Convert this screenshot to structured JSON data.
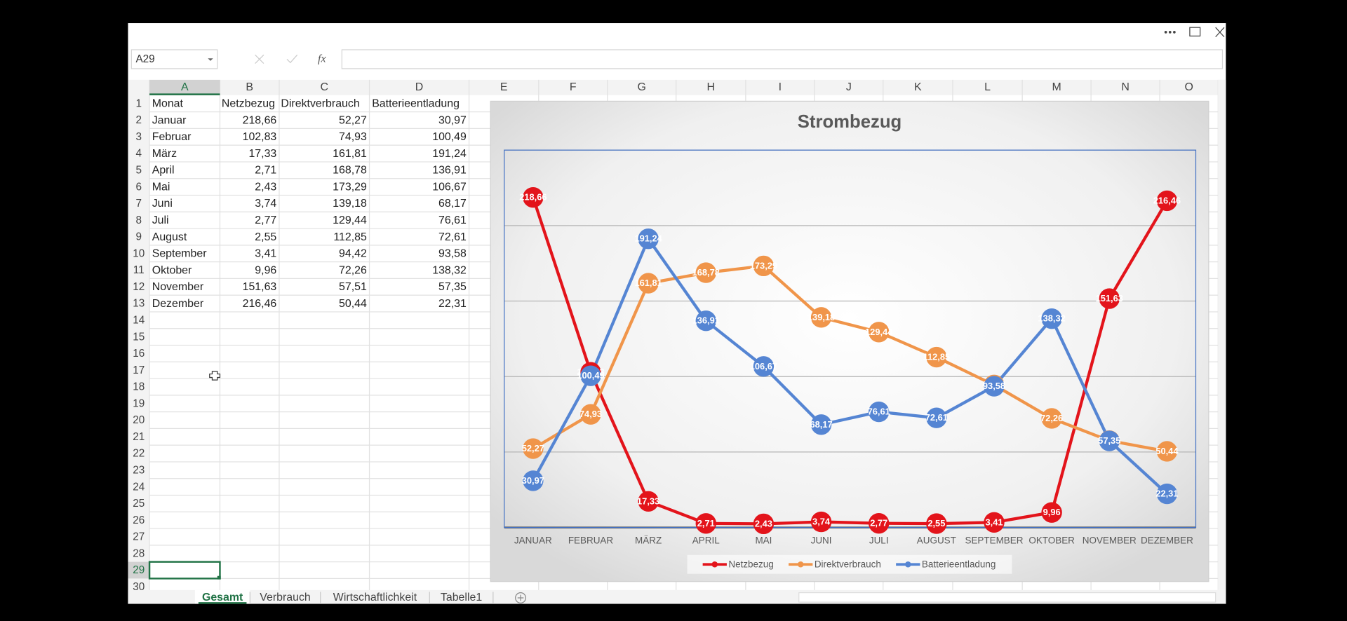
{
  "formula_bar": {
    "name_box": "A29",
    "fx": "fx"
  },
  "sheet": {
    "columns": [
      "A",
      "B",
      "C",
      "D",
      "E",
      "F",
      "G",
      "H",
      "I",
      "J",
      "K",
      "L",
      "M",
      "N",
      "O"
    ],
    "row_numbers": [
      1,
      2,
      3,
      4,
      5,
      6,
      7,
      8,
      9,
      10,
      11,
      12,
      13,
      14,
      15,
      16,
      17,
      18,
      19,
      20,
      21,
      22,
      23,
      24,
      25,
      26,
      27,
      28,
      29,
      30
    ],
    "rows": [
      [
        "Monat",
        "Netzbezug",
        "Direktverbrauch",
        "Batterieentladung"
      ],
      [
        "Januar",
        "218,66",
        "52,27",
        "30,97"
      ],
      [
        "Februar",
        "102,83",
        "74,93",
        "100,49"
      ],
      [
        "März",
        "17,33",
        "161,81",
        "191,24"
      ],
      [
        "April",
        "2,71",
        "168,78",
        "136,91"
      ],
      [
        "Mai",
        "2,43",
        "173,29",
        "106,67"
      ],
      [
        "Juni",
        "3,74",
        "139,18",
        "68,17"
      ],
      [
        "Juli",
        "2,77",
        "129,44",
        "76,61"
      ],
      [
        "August",
        "2,55",
        "112,85",
        "72,61"
      ],
      [
        "September",
        "3,41",
        "94,42",
        "93,58"
      ],
      [
        "Oktober",
        "9,96",
        "72,26",
        "138,32"
      ],
      [
        "November",
        "151,63",
        "57,51",
        "57,35"
      ],
      [
        "Dezember",
        "216,46",
        "50,44",
        "22,31"
      ]
    ]
  },
  "chart_data": {
    "type": "line",
    "title": "Strombezug",
    "categories": [
      "JANUAR",
      "FEBRUAR",
      "MÄRZ",
      "APRIL",
      "MAI",
      "JUNI",
      "JULI",
      "AUGUST",
      "SEPTEMBER",
      "OKTOBER",
      "NOVEMBER",
      "DEZEMBER"
    ],
    "ylim": [
      0,
      250
    ],
    "yticks": [
      0,
      50,
      100,
      150,
      200,
      250
    ],
    "grid": true,
    "legend": "bottom",
    "series": [
      {
        "name": "Netzbezug",
        "color": "#e3141b",
        "values": [
          218.66,
          102.83,
          17.33,
          2.71,
          2.43,
          3.74,
          2.77,
          2.55,
          3.41,
          9.96,
          151.63,
          216.46
        ],
        "value_labels": [
          "218,66",
          "102,83",
          "17,33",
          "2,71",
          "2,43",
          "3,74",
          "2,77",
          "2,55",
          "3,41",
          "9,96",
          "151,63",
          "216,46"
        ]
      },
      {
        "name": "Direktverbrauch",
        "color": "#f0954a",
        "values": [
          52.27,
          74.93,
          161.81,
          168.78,
          173.29,
          139.18,
          129.44,
          112.85,
          94.42,
          72.26,
          57.51,
          50.44
        ],
        "value_labels": [
          "52,27",
          "74,93",
          "161,81",
          "168,78",
          "173,29",
          "139,18",
          "129,44",
          "112,85",
          "94,42",
          "72,26",
          "57,51",
          "50,44"
        ]
      },
      {
        "name": "Batterieentladung",
        "color": "#5585d3",
        "values": [
          30.97,
          100.49,
          191.24,
          136.91,
          106.67,
          68.17,
          76.61,
          72.61,
          93.58,
          138.32,
          57.35,
          22.31
        ],
        "value_labels": [
          "30,97",
          "100,49",
          "191,24",
          "136,91",
          "106,67",
          "68,17",
          "76,61",
          "72,61",
          "93,58",
          "138,32",
          "57,35",
          "22,31"
        ]
      }
    ]
  },
  "tabs": [
    "Gesamt",
    "Verbrauch",
    "Wirtschaftlichkeit",
    "Tabelle1"
  ]
}
